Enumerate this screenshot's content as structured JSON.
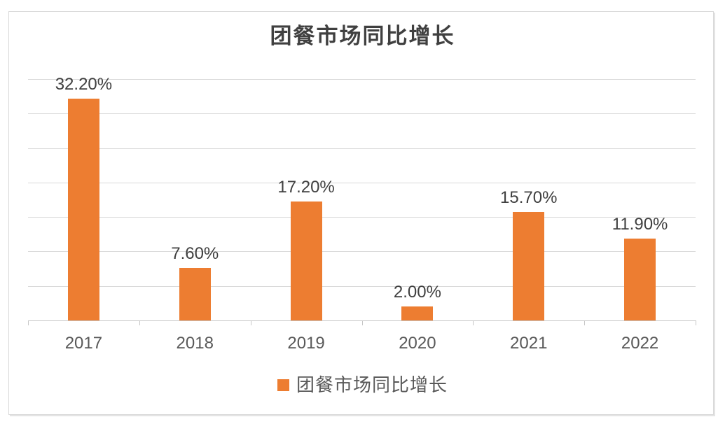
{
  "chart_data": {
    "type": "bar",
    "title": "团餐市场同比增长",
    "categories": [
      "2017",
      "2018",
      "2019",
      "2020",
      "2021",
      "2022"
    ],
    "values": [
      32.2,
      7.6,
      17.2,
      2.0,
      15.7,
      11.9
    ],
    "value_labels": [
      "32.20%",
      "7.60%",
      "17.20%",
      "2.00%",
      "15.70%",
      "11.90%"
    ],
    "legend": [
      "团餐市场同比增长"
    ],
    "legend_position": "bottom",
    "xlabel": "",
    "ylabel": "",
    "ylim": [
      0,
      35
    ],
    "grid_step": 5,
    "grid": true,
    "y_tick_labels_visible": false,
    "colors": {
      "bar": "#ED7D31",
      "gridline": "#D9D9D9",
      "axis": "#C6C6C6",
      "frame_border": "#D9D9D9",
      "title_text": "#404040",
      "label_text": "#404040",
      "axis_text": "#595959",
      "legend_text": "#595959",
      "background": "#FFFFFF"
    }
  }
}
